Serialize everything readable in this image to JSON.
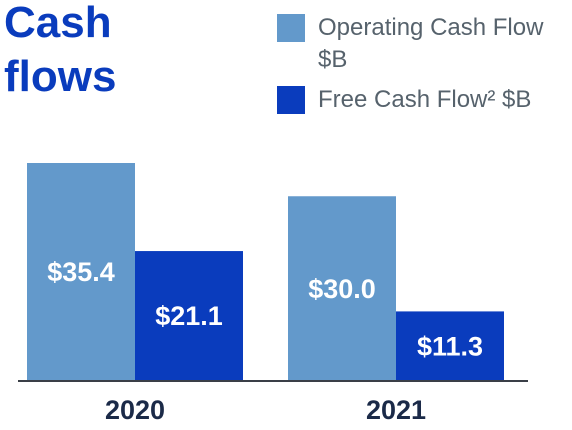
{
  "chart_data": {
    "type": "bar",
    "title": "Cash flows",
    "categories": [
      "2020",
      "2021"
    ],
    "series": [
      {
        "name": "Operating Cash Flow $B",
        "color": "#6399cb",
        "values": [
          35.4,
          30.0
        ],
        "value_labels": [
          "$35.4",
          "$30.0"
        ]
      },
      {
        "name": "Free Cash Flow² $B",
        "color": "#0a3cbd",
        "values": [
          21.1,
          11.3
        ],
        "value_labels": [
          "$21.1",
          "$11.3"
        ]
      }
    ]
  }
}
